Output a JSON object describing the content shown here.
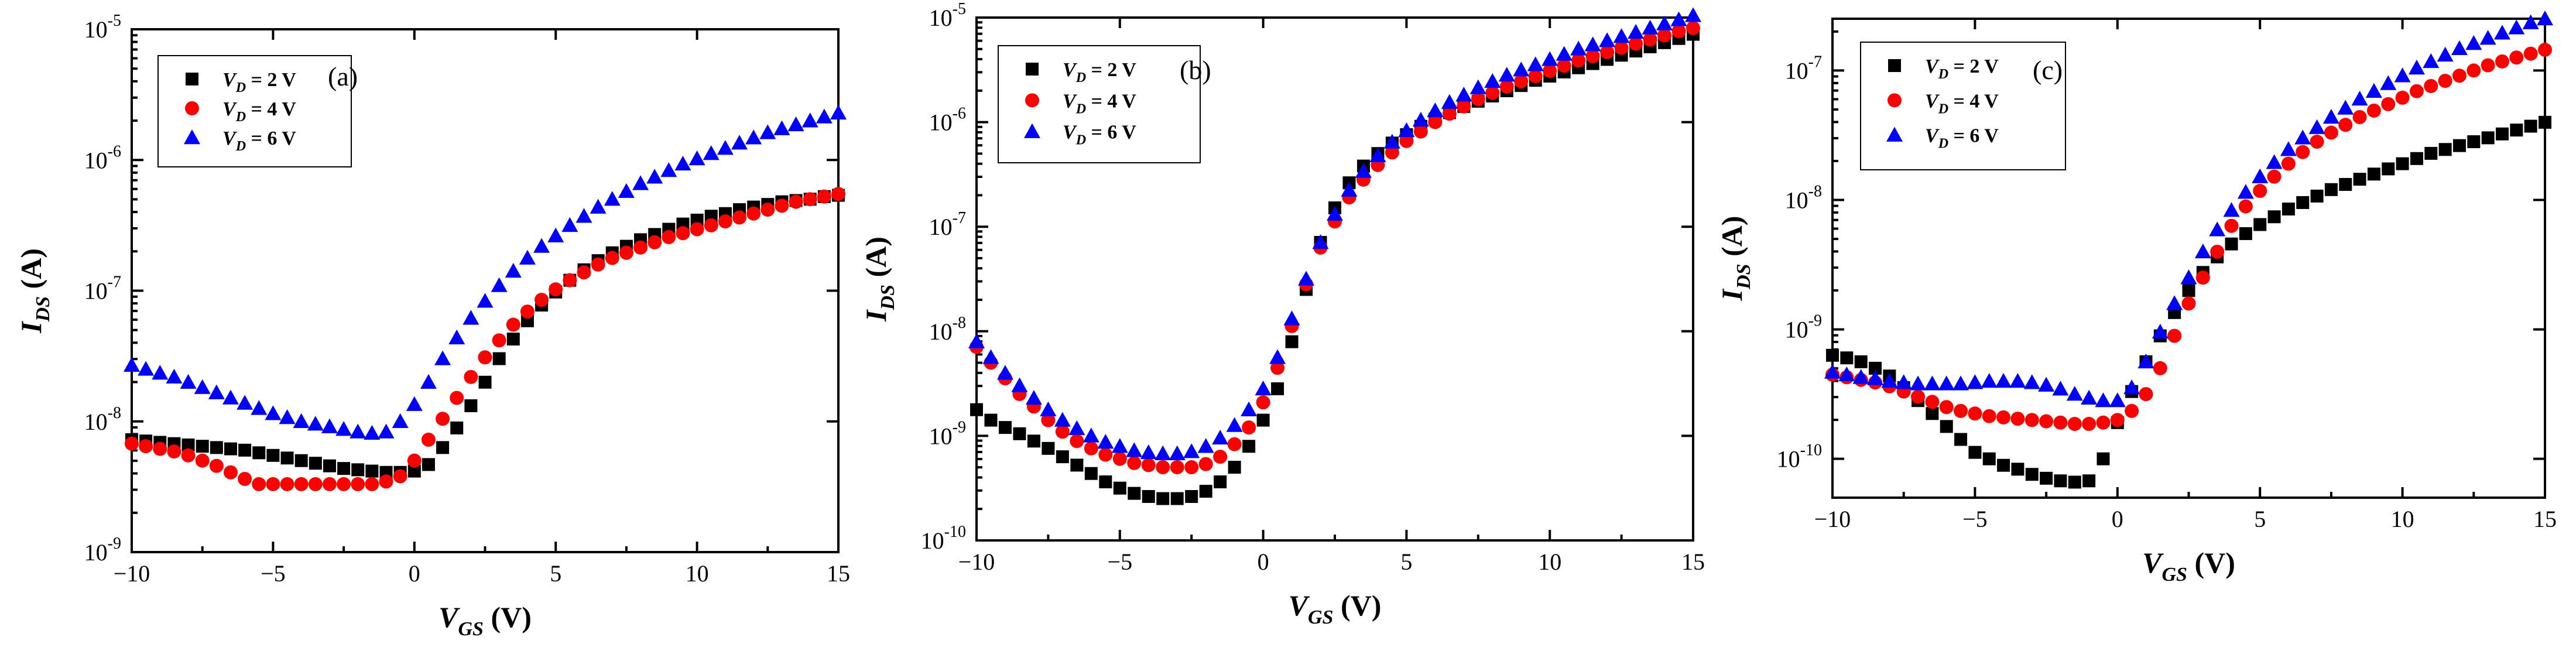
{
  "chart_data": [
    {
      "type": "scatter",
      "panel_label": "(a)",
      "xlabel": "V_GS (V)",
      "ylabel": "I_DS (A)",
      "x_scale": "linear",
      "y_scale": "log",
      "xlim": [
        -10,
        15
      ],
      "ylim_exp": [
        -9,
        -5
      ],
      "x_ticks": [
        "−10",
        "−5",
        "0",
        "5",
        "10",
        "15"
      ],
      "y_ticks": [
        "10^-9",
        "10^-8",
        "10^-7",
        "10^-6",
        "10^-5"
      ],
      "legend": [
        "V_D = 2 V",
        "V_D = 4 V",
        "V_D = 6 V"
      ],
      "series": [
        {
          "name": "V_D = 2 V",
          "marker": "square",
          "color": "#000000",
          "x": [
            -10,
            -9.5,
            -9,
            -8.5,
            -8,
            -7.5,
            -7,
            -6.5,
            -6,
            -5.5,
            -5,
            -4.5,
            -4,
            -3.5,
            -3,
            -2.5,
            -2,
            -1.5,
            -1,
            -0.5,
            0,
            0.5,
            1,
            1.5,
            2,
            2.5,
            3,
            3.5,
            4,
            4.5,
            5,
            5.5,
            6,
            6.5,
            7,
            7.5,
            8,
            8.5,
            9,
            9.5,
            10,
            10.5,
            11,
            11.5,
            12,
            12.5,
            13,
            13.5,
            14,
            14.5,
            15
          ],
          "log_y": [
            -8.14,
            -8.15,
            -8.16,
            -8.17,
            -8.18,
            -8.19,
            -8.2,
            -8.21,
            -8.22,
            -8.24,
            -8.26,
            -8.28,
            -8.3,
            -8.32,
            -8.34,
            -8.36,
            -8.37,
            -8.38,
            -8.39,
            -8.39,
            -8.38,
            -8.33,
            -8.2,
            -8.05,
            -7.88,
            -7.7,
            -7.52,
            -7.37,
            -7.23,
            -7.11,
            -7.01,
            -6.92,
            -6.84,
            -6.77,
            -6.71,
            -6.66,
            -6.61,
            -6.57,
            -6.53,
            -6.49,
            -6.46,
            -6.43,
            -6.41,
            -6.38,
            -6.36,
            -6.34,
            -6.32,
            -6.31,
            -6.3,
            -6.28,
            -6.27
          ]
        },
        {
          "name": "V_D = 4 V",
          "marker": "circle",
          "color": "#ff0000",
          "x": [
            -10,
            -9.5,
            -9,
            -8.5,
            -8,
            -7.5,
            -7,
            -6.5,
            -6,
            -5.5,
            -5,
            -4.5,
            -4,
            -3.5,
            -3,
            -2.5,
            -2,
            -1.5,
            -1,
            -0.5,
            0,
            0.5,
            1,
            1.5,
            2,
            2.5,
            3,
            3.5,
            4,
            4.5,
            5,
            5.5,
            6,
            6.5,
            7,
            7.5,
            8,
            8.5,
            9,
            9.5,
            10,
            10.5,
            11,
            11.5,
            12,
            12.5,
            13,
            13.5,
            14,
            14.5,
            15
          ],
          "log_y": [
            -8.17,
            -8.19,
            -8.21,
            -8.23,
            -8.26,
            -8.3,
            -8.34,
            -8.39,
            -8.44,
            -8.48,
            -8.48,
            -8.48,
            -8.48,
            -8.48,
            -8.48,
            -8.48,
            -8.48,
            -8.48,
            -8.46,
            -8.42,
            -8.3,
            -8.14,
            -7.98,
            -7.82,
            -7.66,
            -7.51,
            -7.38,
            -7.26,
            -7.16,
            -7.07,
            -6.99,
            -6.92,
            -6.86,
            -6.8,
            -6.75,
            -6.71,
            -6.67,
            -6.63,
            -6.59,
            -6.56,
            -6.53,
            -6.5,
            -6.47,
            -6.44,
            -6.41,
            -6.38,
            -6.35,
            -6.32,
            -6.3,
            -6.28,
            -6.26
          ]
        },
        {
          "name": "V_D = 6 V",
          "marker": "triangle",
          "color": "#0000ff",
          "x": [
            -10,
            -9.5,
            -9,
            -8.5,
            -8,
            -7.5,
            -7,
            -6.5,
            -6,
            -5.5,
            -5,
            -4.5,
            -4,
            -3.5,
            -3,
            -2.5,
            -2,
            -1.5,
            -1,
            -0.5,
            0,
            0.5,
            1,
            1.5,
            2,
            2.5,
            3,
            3.5,
            4,
            4.5,
            5,
            5.5,
            6,
            6.5,
            7,
            7.5,
            8,
            8.5,
            9,
            9.5,
            10,
            10.5,
            11,
            11.5,
            12,
            12.5,
            13,
            13.5,
            14,
            14.5,
            15
          ],
          "log_y": [
            -7.57,
            -7.6,
            -7.63,
            -7.66,
            -7.7,
            -7.74,
            -7.78,
            -7.82,
            -7.86,
            -7.9,
            -7.94,
            -7.97,
            -8.0,
            -8.02,
            -8.04,
            -8.06,
            -8.08,
            -8.09,
            -8.08,
            -8.0,
            -7.87,
            -7.7,
            -7.52,
            -7.36,
            -7.21,
            -7.08,
            -6.96,
            -6.85,
            -6.75,
            -6.66,
            -6.58,
            -6.5,
            -6.43,
            -6.36,
            -6.3,
            -6.24,
            -6.18,
            -6.13,
            -6.08,
            -6.03,
            -5.99,
            -5.95,
            -5.91,
            -5.87,
            -5.83,
            -5.79,
            -5.76,
            -5.73,
            -5.7,
            -5.67,
            -5.64
          ]
        }
      ]
    },
    {
      "type": "scatter",
      "panel_label": "(b)",
      "xlabel": "V_GS (V)",
      "ylabel": "I_DS (A)",
      "x_scale": "linear",
      "y_scale": "log",
      "xlim": [
        -10,
        15
      ],
      "ylim_exp": [
        -10,
        -5
      ],
      "x_ticks": [
        "−10",
        "−5",
        "0",
        "5",
        "10",
        "15"
      ],
      "y_ticks": [
        "10^-10",
        "10^-9",
        "10^-8",
        "10^-7",
        "10^-6",
        "10^-5"
      ],
      "legend": [
        "V_D = 2 V",
        "V_D = 4 V",
        "V_D = 6 V"
      ],
      "series": [
        {
          "name": "V_D = 2 V",
          "marker": "square",
          "color": "#000000",
          "x": [
            -10,
            -9.5,
            -9,
            -8.5,
            -8,
            -7.5,
            -7,
            -6.5,
            -6,
            -5.5,
            -5,
            -4.5,
            -4,
            -3.5,
            -3,
            -2.5,
            -2,
            -1.5,
            -1,
            -0.5,
            0,
            0.5,
            1,
            1.5,
            2,
            2.5,
            3,
            3.5,
            4,
            4.5,
            5,
            5.5,
            6,
            6.5,
            7,
            7.5,
            8,
            8.5,
            9,
            9.5,
            10,
            10.5,
            11,
            11.5,
            12,
            12.5,
            13,
            13.5,
            14,
            14.5,
            15
          ],
          "log_y": [
            -8.75,
            -8.85,
            -8.92,
            -8.98,
            -9.05,
            -9.12,
            -9.2,
            -9.28,
            -9.36,
            -9.44,
            -9.5,
            -9.55,
            -9.58,
            -9.6,
            -9.6,
            -9.58,
            -9.53,
            -9.44,
            -9.3,
            -9.1,
            -8.85,
            -8.55,
            -8.1,
            -7.6,
            -7.15,
            -6.82,
            -6.58,
            -6.42,
            -6.3,
            -6.2,
            -6.12,
            -6.04,
            -5.97,
            -5.91,
            -5.85,
            -5.8,
            -5.75,
            -5.7,
            -5.65,
            -5.6,
            -5.56,
            -5.52,
            -5.48,
            -5.44,
            -5.4,
            -5.36,
            -5.32,
            -5.28,
            -5.24,
            -5.2,
            -5.16
          ]
        },
        {
          "name": "V_D = 4 V",
          "marker": "circle",
          "color": "#ff0000",
          "x": [
            -10,
            -9.5,
            -9,
            -8.5,
            -8,
            -7.5,
            -7,
            -6.5,
            -6,
            -5.5,
            -5,
            -4.5,
            -4,
            -3.5,
            -3,
            -2.5,
            -2,
            -1.5,
            -1,
            -0.5,
            0,
            0.5,
            1,
            1.5,
            2,
            2.5,
            3,
            3.5,
            4,
            4.5,
            5,
            5.5,
            6,
            6.5,
            7,
            7.5,
            8,
            8.5,
            9,
            9.5,
            10,
            10.5,
            11,
            11.5,
            12,
            12.5,
            13,
            13.5,
            14,
            14.5,
            15
          ],
          "log_y": [
            -8.15,
            -8.3,
            -8.45,
            -8.6,
            -8.72,
            -8.85,
            -8.96,
            -9.05,
            -9.12,
            -9.18,
            -9.22,
            -9.26,
            -9.28,
            -9.3,
            -9.3,
            -9.3,
            -9.27,
            -9.2,
            -9.08,
            -8.92,
            -8.68,
            -8.35,
            -7.95,
            -7.55,
            -7.2,
            -6.95,
            -6.72,
            -6.55,
            -6.41,
            -6.29,
            -6.18,
            -6.09,
            -6.0,
            -5.92,
            -5.85,
            -5.78,
            -5.72,
            -5.66,
            -5.61,
            -5.56,
            -5.51,
            -5.46,
            -5.41,
            -5.37,
            -5.33,
            -5.29,
            -5.25,
            -5.21,
            -5.17,
            -5.13,
            -5.1
          ]
        },
        {
          "name": "V_D = 6 V",
          "marker": "triangle",
          "color": "#0000ff",
          "x": [
            -10,
            -9.5,
            -9,
            -8.5,
            -8,
            -7.5,
            -7,
            -6.5,
            -6,
            -5.5,
            -5,
            -4.5,
            -4,
            -3.5,
            -3,
            -2.5,
            -2,
            -1.5,
            -1,
            -0.5,
            0,
            0.5,
            1,
            1.5,
            2,
            2.5,
            3,
            3.5,
            4,
            4.5,
            5,
            5.5,
            6,
            6.5,
            7,
            7.5,
            8,
            8.5,
            9,
            9.5,
            10,
            10.5,
            11,
            11.5,
            12,
            12.5,
            13,
            13.5,
            14,
            14.5,
            15
          ],
          "log_y": [
            -8.1,
            -8.25,
            -8.4,
            -8.52,
            -8.64,
            -8.75,
            -8.85,
            -8.93,
            -9.0,
            -9.06,
            -9.1,
            -9.14,
            -9.16,
            -9.17,
            -9.17,
            -9.15,
            -9.1,
            -9.02,
            -8.9,
            -8.75,
            -8.55,
            -8.25,
            -7.88,
            -7.5,
            -7.15,
            -6.88,
            -6.65,
            -6.47,
            -6.32,
            -6.19,
            -6.08,
            -5.98,
            -5.89,
            -5.81,
            -5.74,
            -5.67,
            -5.61,
            -5.55,
            -5.5,
            -5.45,
            -5.4,
            -5.35,
            -5.3,
            -5.26,
            -5.22,
            -5.18,
            -5.14,
            -5.1,
            -5.06,
            -5.02,
            -4.98
          ]
        }
      ]
    },
    {
      "type": "scatter",
      "panel_label": "(c)",
      "xlabel": "V_GS (V)",
      "ylabel": "I_DS (A)",
      "x_scale": "linear",
      "y_scale": "log",
      "xlim": [
        -10,
        15
      ],
      "ylim_exp": [
        -10.3,
        -6.6
      ],
      "x_ticks": [
        "−10",
        "−5",
        "0",
        "5",
        "10",
        "15"
      ],
      "y_ticks": [
        "10^-10",
        "10^-9",
        "10^-8",
        "10^-7"
      ],
      "legend": [
        "V_D = 2 V",
        "V_D = 4 V",
        "V_D = 6 V"
      ],
      "series": [
        {
          "name": "V_D = 2 V",
          "marker": "square",
          "color": "#000000",
          "x": [
            -10,
            -9.5,
            -9,
            -8.5,
            -8,
            -7.5,
            -7,
            -6.5,
            -6,
            -5.5,
            -5,
            -4.5,
            -4,
            -3.5,
            -3,
            -2.5,
            -2,
            -1.5,
            -1,
            -0.5,
            0,
            0.5,
            1,
            1.5,
            2,
            2.5,
            3,
            3.5,
            4,
            4.5,
            5,
            5.5,
            6,
            6.5,
            7,
            7.5,
            8,
            8.5,
            9,
            9.5,
            10,
            10.5,
            11,
            11.5,
            12,
            12.5,
            13,
            13.5,
            14,
            14.5,
            15
          ],
          "log_y": [
            -9.2,
            -9.22,
            -9.25,
            -9.3,
            -9.36,
            -9.45,
            -9.55,
            -9.65,
            -9.75,
            -9.85,
            -9.95,
            -10.0,
            -10.05,
            -10.08,
            -10.12,
            -10.15,
            -10.17,
            -10.18,
            -10.17,
            -10.0,
            -9.72,
            -9.48,
            -9.25,
            -9.05,
            -8.87,
            -8.7,
            -8.56,
            -8.44,
            -8.34,
            -8.26,
            -8.19,
            -8.13,
            -8.07,
            -8.02,
            -7.97,
            -7.92,
            -7.88,
            -7.84,
            -7.8,
            -7.76,
            -7.72,
            -7.68,
            -7.64,
            -7.61,
            -7.58,
            -7.55,
            -7.52,
            -7.49,
            -7.46,
            -7.43,
            -7.4
          ]
        },
        {
          "name": "V_D = 4 V",
          "marker": "circle",
          "color": "#ff0000",
          "x": [
            -10,
            -9.5,
            -9,
            -8.5,
            -8,
            -7.5,
            -7,
            -6.5,
            -6,
            -5.5,
            -5,
            -4.5,
            -4,
            -3.5,
            -3,
            -2.5,
            -2,
            -1.5,
            -1,
            -0.5,
            0,
            0.5,
            1,
            1.5,
            2,
            2.5,
            3,
            3.5,
            4,
            4.5,
            5,
            5.5,
            6,
            6.5,
            7,
            7.5,
            8,
            8.5,
            9,
            9.5,
            10,
            10.5,
            11,
            11.5,
            12,
            12.5,
            13,
            13.5,
            14,
            14.5,
            15
          ],
          "log_y": [
            -9.35,
            -9.37,
            -9.39,
            -9.41,
            -9.44,
            -9.48,
            -9.52,
            -9.56,
            -9.6,
            -9.63,
            -9.65,
            -9.67,
            -9.68,
            -9.69,
            -9.7,
            -9.71,
            -9.72,
            -9.73,
            -9.73,
            -9.72,
            -9.7,
            -9.63,
            -9.5,
            -9.3,
            -9.05,
            -8.8,
            -8.6,
            -8.4,
            -8.2,
            -8.05,
            -7.93,
            -7.82,
            -7.72,
            -7.63,
            -7.55,
            -7.48,
            -7.42,
            -7.36,
            -7.31,
            -7.26,
            -7.21,
            -7.16,
            -7.12,
            -7.08,
            -7.04,
            -7.0,
            -6.96,
            -6.93,
            -6.9,
            -6.87,
            -6.84
          ]
        },
        {
          "name": "V_D = 6 V",
          "marker": "triangle",
          "color": "#0000ff",
          "x": [
            -10,
            -9.5,
            -9,
            -8.5,
            -8,
            -7.5,
            -7,
            -6.5,
            -6,
            -5.5,
            -5,
            -4.5,
            -4,
            -3.5,
            -3,
            -2.5,
            -2,
            -1.5,
            -1,
            -0.5,
            0,
            0.5,
            1,
            1.5,
            2,
            2.5,
            3,
            3.5,
            4,
            4.5,
            5,
            5.5,
            6,
            6.5,
            7,
            7.5,
            8,
            8.5,
            9,
            9.5,
            10,
            10.5,
            11,
            11.5,
            12,
            12.5,
            13,
            13.5,
            14,
            14.5,
            15
          ],
          "log_y": [
            -9.33,
            -9.35,
            -9.37,
            -9.38,
            -9.4,
            -9.41,
            -9.42,
            -9.42,
            -9.42,
            -9.42,
            -9.41,
            -9.4,
            -9.4,
            -9.4,
            -9.41,
            -9.43,
            -9.46,
            -9.5,
            -9.53,
            -9.55,
            -9.55,
            -9.45,
            -9.25,
            -9.02,
            -8.8,
            -8.6,
            -8.4,
            -8.23,
            -8.08,
            -7.94,
            -7.82,
            -7.71,
            -7.61,
            -7.52,
            -7.44,
            -7.36,
            -7.29,
            -7.22,
            -7.16,
            -7.1,
            -7.04,
            -6.98,
            -6.93,
            -6.88,
            -6.83,
            -6.79,
            -6.75,
            -6.71,
            -6.67,
            -6.63,
            -6.6
          ]
        }
      ]
    }
  ]
}
